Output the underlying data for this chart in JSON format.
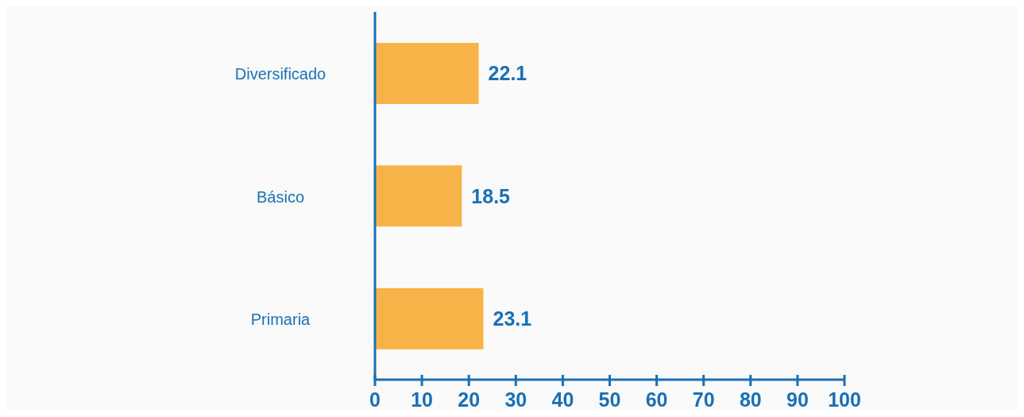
{
  "chart_data": {
    "type": "bar",
    "orientation": "horizontal",
    "categories": [
      "Diversificado",
      "Básico",
      "Primaria"
    ],
    "values": [
      22.1,
      18.5,
      23.1
    ],
    "color": "#f7b347",
    "xlim": [
      0,
      100
    ],
    "xticks": [
      0,
      10,
      20,
      30,
      40,
      50,
      60,
      70,
      80,
      90,
      100
    ],
    "data_labels": true,
    "grid": false,
    "legend": false
  }
}
